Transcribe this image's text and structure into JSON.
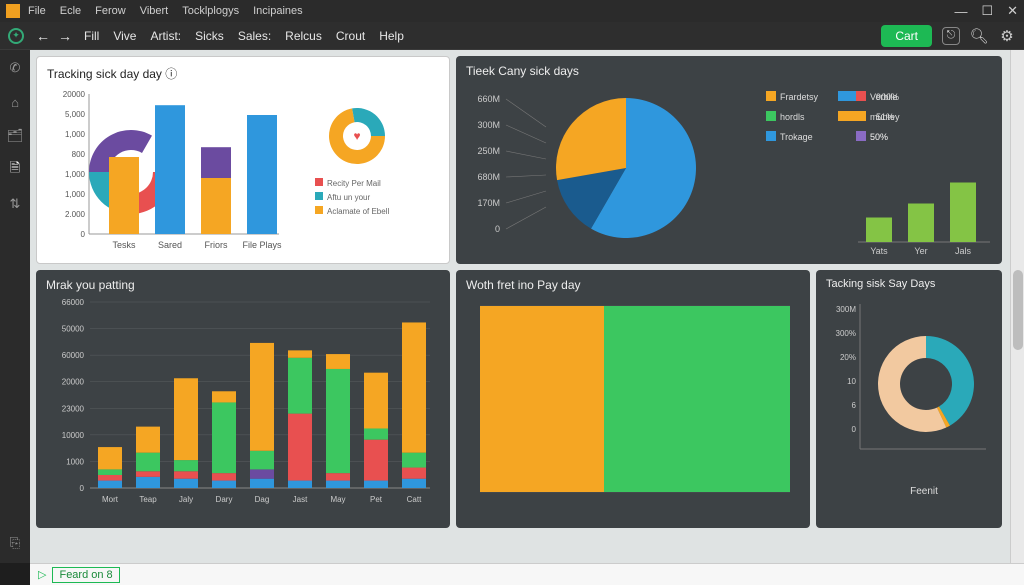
{
  "colors": {
    "bgdark": "#3d4245",
    "panel": "#2b2b2b",
    "accent": "#1db954",
    "blue": "#2f97dd",
    "orange": "#f5a623",
    "green": "#3cc760",
    "red": "#e85050",
    "purple": "#6b4ba0",
    "teal": "#2aa9b9",
    "yellow": "#f2c232",
    "lime": "#84c445",
    "peach": "#f2c9a0",
    "navy": "#1a5b8e",
    "grid": "#5a5f62",
    "gridlight": "#d8d8d8",
    "text": "#e8e8e8"
  },
  "title_menu": [
    "File",
    "Ecle",
    "Ferow",
    "Vibert",
    "Tocklplogys",
    "Incipaines"
  ],
  "toolbar": {
    "items": [
      "Fill",
      "Vive",
      "Artist:",
      "Sicks",
      "Sales:",
      "Relcus",
      "Crout",
      "Help"
    ],
    "cart": "Cart"
  },
  "status": {
    "text": "Feard on 8"
  },
  "card1": {
    "title": "Tracking sick day day ⓘ",
    "yticks": [
      "20000",
      "5,000",
      "1,000",
      "800",
      "1,000",
      "1,000",
      "2.000",
      "0"
    ],
    "xcats": [
      "Tesks",
      "Sared",
      "Friors",
      "File Plays"
    ],
    "bars": [
      {
        "x": 0,
        "h": 0.55,
        "color": "#f5a623"
      },
      {
        "x": 1,
        "h": 0.92,
        "color": "#2f97dd"
      },
      {
        "x": 2,
        "h": 0.4,
        "color": "#f5a623"
      },
      {
        "x": 2,
        "h": 0.22,
        "color": "#6b4ba0",
        "stack": 0.4
      },
      {
        "x": 3,
        "h": 0.85,
        "color": "#2f97dd"
      }
    ],
    "donut1": [
      {
        "start": 0,
        "end": 90,
        "color": "#e85050"
      },
      {
        "start": 90,
        "end": 180,
        "color": "#2aa9b9"
      },
      {
        "start": 180,
        "end": 300,
        "color": "#6b4ba0"
      }
    ],
    "donut2": [
      {
        "start": 0,
        "end": 260,
        "color": "#f5a623"
      },
      {
        "start": 260,
        "end": 360,
        "color": "#2aa9b9"
      }
    ],
    "legend": [
      {
        "color": "#e85050",
        "label": "Recity Per Mail"
      },
      {
        "color": "#2aa9b9",
        "label": "Aftu un your"
      },
      {
        "color": "#f5a623",
        "label": "Aclamate of Ebell"
      }
    ]
  },
  "card2": {
    "title": "Tieek Cany sick days",
    "yticks": [
      "660M",
      "300M",
      "250M",
      "680M",
      "170M",
      "0"
    ],
    "pie": [
      {
        "start": -90,
        "end": 120,
        "color": "#2f97dd"
      },
      {
        "start": 120,
        "end": 170,
        "color": "#1a5b8e"
      },
      {
        "start": 170,
        "end": 270,
        "color": "#f5a623"
      }
    ],
    "legend": [
      {
        "color": "#f5a623",
        "label": "Frardetsy",
        "bar": "#2f97dd",
        "val": "900%"
      },
      {
        "color": "#3cc760",
        "label": "hordls",
        "bar": "#f5a623",
        "val": "51%"
      },
      {
        "color": "#2f97dd",
        "label": "Trokage",
        "bar": "",
        "val": ""
      },
      {
        "color": "#e85050",
        "label": "Verbile",
        "bar": "",
        "val": ""
      },
      {
        "color": "#f5a623",
        "label": "muntey",
        "bar": "",
        "val": ""
      },
      {
        "color": "#8a6bc4",
        "label": "50%",
        "bar": "",
        "val": ""
      }
    ]
  },
  "card3": {
    "title": "",
    "bars": [
      {
        "x": 0,
        "h": 0.35,
        "color": "#84c445"
      },
      {
        "x": 1,
        "h": 0.55,
        "color": "#84c445"
      },
      {
        "x": 2,
        "h": 0.85,
        "color": "#84c445"
      }
    ],
    "xcats": [
      "Yats",
      "Yer",
      "Jals"
    ]
  },
  "card4": {
    "title": "Mrak you patting",
    "yticks": [
      "66000",
      "50000",
      "60000",
      "20000",
      "23000",
      "10000",
      "1000",
      "0"
    ],
    "xcats": [
      "Mort",
      "Teap",
      "Jaly",
      "Dary",
      "Dag",
      "Jast",
      "May",
      "Pet",
      "Catt"
    ],
    "stacks": [
      [
        {
          "c": "#2f97dd",
          "h": 0.04
        },
        {
          "c": "#e85050",
          "h": 0.03
        },
        {
          "c": "#3cc760",
          "h": 0.03
        },
        {
          "c": "#f5a623",
          "h": 0.12
        }
      ],
      [
        {
          "c": "#2f97dd",
          "h": 0.06
        },
        {
          "c": "#e85050",
          "h": 0.03
        },
        {
          "c": "#3cc760",
          "h": 0.1
        },
        {
          "c": "#f5a623",
          "h": 0.14
        }
      ],
      [
        {
          "c": "#2f97dd",
          "h": 0.05
        },
        {
          "c": "#e85050",
          "h": 0.04
        },
        {
          "c": "#3cc760",
          "h": 0.06
        },
        {
          "c": "#f5a623",
          "h": 0.44
        }
      ],
      [
        {
          "c": "#2f97dd",
          "h": 0.04
        },
        {
          "c": "#e85050",
          "h": 0.04
        },
        {
          "c": "#3cc760",
          "h": 0.38
        },
        {
          "c": "#f5a623",
          "h": 0.06
        }
      ],
      [
        {
          "c": "#2f97dd",
          "h": 0.05
        },
        {
          "c": "#6b4ba0",
          "h": 0.05
        },
        {
          "c": "#3cc760",
          "h": 0.1
        },
        {
          "c": "#f5a623",
          "h": 0.58
        }
      ],
      [
        {
          "c": "#2f97dd",
          "h": 0.04
        },
        {
          "c": "#e85050",
          "h": 0.36
        },
        {
          "c": "#3cc760",
          "h": 0.3
        },
        {
          "c": "#f5a623",
          "h": 0.04
        }
      ],
      [
        {
          "c": "#2f97dd",
          "h": 0.04
        },
        {
          "c": "#e85050",
          "h": 0.04
        },
        {
          "c": "#3cc760",
          "h": 0.56
        },
        {
          "c": "#f5a623",
          "h": 0.08
        }
      ],
      [
        {
          "c": "#2f97dd",
          "h": 0.04
        },
        {
          "c": "#e85050",
          "h": 0.22
        },
        {
          "c": "#3cc760",
          "h": 0.06
        },
        {
          "c": "#f5a623",
          "h": 0.3
        }
      ],
      [
        {
          "c": "#2f97dd",
          "h": 0.05
        },
        {
          "c": "#e85050",
          "h": 0.06
        },
        {
          "c": "#3cc760",
          "h": 0.08
        },
        {
          "c": "#f5a623",
          "h": 0.7
        }
      ]
    ]
  },
  "card5": {
    "title": "Woth fret ino Pay day",
    "left": {
      "color": "#f5a623",
      "w": 0.4
    },
    "right": {
      "color": "#3cc760",
      "w": 0.6
    }
  },
  "card6": {
    "title": "Tacking sisk Say Days",
    "yticks": [
      "300M",
      "300%",
      "20%",
      "10",
      "6",
      "0"
    ],
    "donut": [
      {
        "start": -90,
        "end": 60,
        "color": "#2aa9b9"
      },
      {
        "start": 60,
        "end": 65,
        "color": "#f5a623"
      },
      {
        "start": 65,
        "end": 270,
        "color": "#f2c9a0"
      }
    ],
    "xlabel": "Feenit"
  }
}
